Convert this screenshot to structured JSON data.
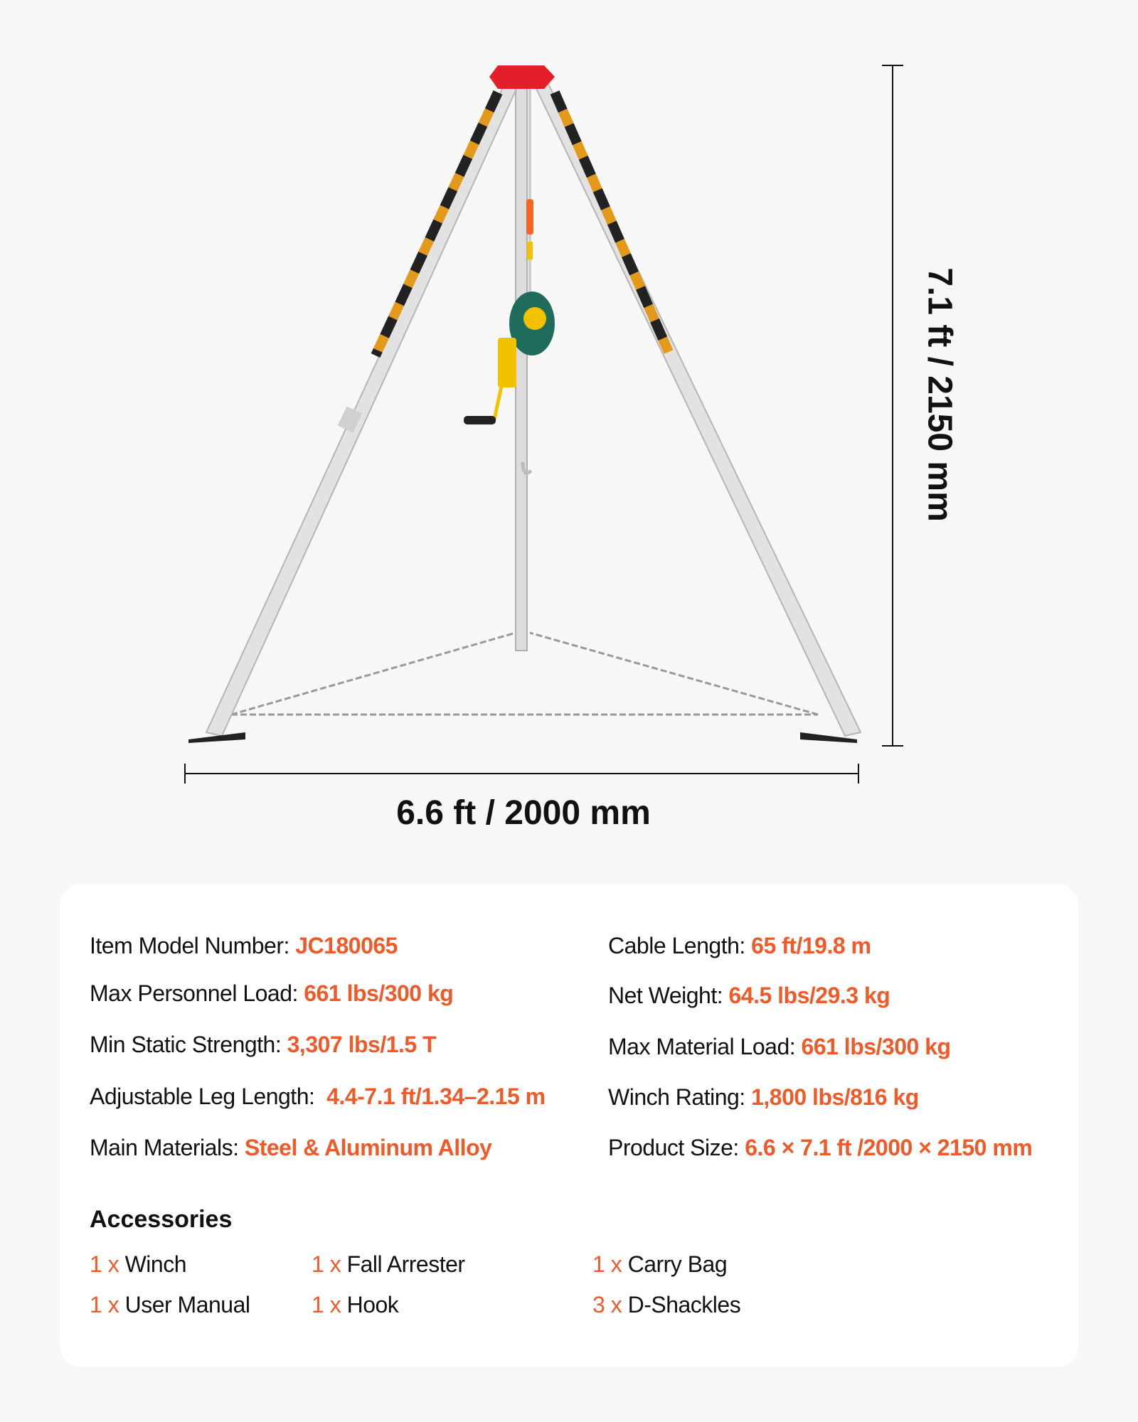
{
  "dimensions": {
    "width_label": "6.6 ft / 2000 mm",
    "height_label": "7.1 ft / 2150 mm"
  },
  "colors": {
    "accent": "#f05a28",
    "tripod_head": "#e3202a",
    "winch": "#1f6b5c"
  },
  "specs": {
    "left": [
      {
        "label": "Item Model Number:",
        "value": "JC180065"
      },
      {
        "label": "Max Personnel Load:",
        "value": "661 lbs/300 kg"
      },
      {
        "label": "Min Static Strength:",
        "value": "3,307 lbs/1.5 T"
      },
      {
        "label": "Adjustable Leg Length:",
        "value": "4.4-7.1 ft/1.34–2.15 m"
      },
      {
        "label": "Main Materials:",
        "value": "Steel & Aluminum Alloy"
      }
    ],
    "right": [
      {
        "label": "Cable Length:",
        "value": "65 ft/19.8 m"
      },
      {
        "label": "Net Weight:",
        "value": "64.5 lbs/29.3 kg"
      },
      {
        "label": "Max Material Load:",
        "value": "661 lbs/300 kg"
      },
      {
        "label": "Winch Rating:",
        "value": "1,800 lbs/816 kg"
      },
      {
        "label": "Product Size:",
        "value": "6.6 × 7.1 ft /2000 × 2150 mm"
      }
    ]
  },
  "accessories": {
    "title": "Accessories",
    "items": [
      {
        "qty": "1 x",
        "name": "Winch"
      },
      {
        "qty": "1 x",
        "name": "Fall Arrester"
      },
      {
        "qty": "1 x",
        "name": "Carry Bag"
      },
      {
        "qty": "1 x",
        "name": "User Manual"
      },
      {
        "qty": "1 x",
        "name": "Hook"
      },
      {
        "qty": "3 x",
        "name": "D-Shackles"
      }
    ]
  }
}
